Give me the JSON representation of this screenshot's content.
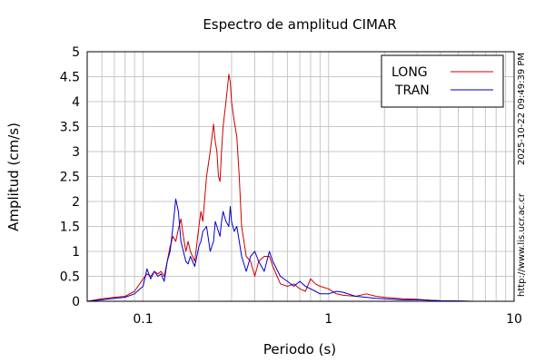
{
  "chart_data": {
    "type": "line",
    "title": "Espectro de amplitud CIMAR",
    "xlabel": "Periodo (s)",
    "ylabel": "Amplitud (cm/s)",
    "x_scale": "log",
    "xlim": [
      0.05,
      10
    ],
    "ylim": [
      0,
      5
    ],
    "grid": true,
    "legend_position": "top-right",
    "x_tick_labels": [
      "0.1",
      "1",
      "10"
    ],
    "x_tick_values": [
      0.1,
      1,
      10
    ],
    "y_tick_labels": [
      "0",
      "0.5",
      "1",
      "1.5",
      "2",
      "2.5",
      "3",
      "3.5",
      "4",
      "4.5",
      "5"
    ],
    "y_tick_values": [
      0,
      0.5,
      1,
      1.5,
      2,
      2.5,
      3,
      3.5,
      4,
      4.5,
      5
    ],
    "series": [
      {
        "name": "LONG",
        "color": "#cc0000",
        "x": [
          0.05,
          0.06,
          0.07,
          0.08,
          0.09,
          0.1,
          0.105,
          0.11,
          0.115,
          0.12,
          0.125,
          0.13,
          0.135,
          0.14,
          0.145,
          0.15,
          0.155,
          0.16,
          0.165,
          0.17,
          0.175,
          0.18,
          0.19,
          0.2,
          0.205,
          0.21,
          0.22,
          0.23,
          0.24,
          0.245,
          0.25,
          0.255,
          0.26,
          0.265,
          0.27,
          0.28,
          0.29,
          0.295,
          0.3,
          0.31,
          0.32,
          0.33,
          0.34,
          0.36,
          0.38,
          0.4,
          0.42,
          0.45,
          0.48,
          0.5,
          0.55,
          0.6,
          0.65,
          0.7,
          0.75,
          0.8,
          0.85,
          0.9,
          1.0,
          1.1,
          1.2,
          1.4,
          1.6,
          1.8,
          2.0,
          2.5,
          3.0,
          3.5,
          4.0,
          6.0,
          10.0
        ],
        "y": [
          0.0,
          0.05,
          0.08,
          0.1,
          0.2,
          0.45,
          0.55,
          0.5,
          0.6,
          0.55,
          0.6,
          0.5,
          0.8,
          1.1,
          1.3,
          1.2,
          1.45,
          1.65,
          1.3,
          1.0,
          1.2,
          1.0,
          0.8,
          1.5,
          1.8,
          1.6,
          2.5,
          3.0,
          3.55,
          3.2,
          3.0,
          2.5,
          2.4,
          3.0,
          3.5,
          4.0,
          4.55,
          4.4,
          4.0,
          3.6,
          3.3,
          2.5,
          1.5,
          0.9,
          0.8,
          0.5,
          0.8,
          0.9,
          0.9,
          0.7,
          0.35,
          0.3,
          0.35,
          0.25,
          0.2,
          0.45,
          0.35,
          0.3,
          0.25,
          0.15,
          0.12,
          0.1,
          0.15,
          0.1,
          0.08,
          0.05,
          0.04,
          0.02,
          0.01,
          0.0,
          0.0
        ]
      },
      {
        "name": "TRAN",
        "color": "#0000cc",
        "x": [
          0.05,
          0.06,
          0.07,
          0.08,
          0.09,
          0.1,
          0.105,
          0.11,
          0.115,
          0.12,
          0.125,
          0.13,
          0.135,
          0.14,
          0.145,
          0.15,
          0.155,
          0.16,
          0.165,
          0.17,
          0.175,
          0.18,
          0.19,
          0.2,
          0.205,
          0.21,
          0.22,
          0.23,
          0.24,
          0.245,
          0.25,
          0.255,
          0.26,
          0.265,
          0.27,
          0.28,
          0.29,
          0.295,
          0.3,
          0.31,
          0.32,
          0.33,
          0.34,
          0.36,
          0.38,
          0.4,
          0.42,
          0.45,
          0.48,
          0.5,
          0.55,
          0.6,
          0.65,
          0.7,
          0.75,
          0.8,
          0.85,
          0.9,
          1.0,
          1.1,
          1.2,
          1.4,
          1.6,
          1.8,
          2.0,
          2.5,
          3.0,
          3.5,
          4.0,
          6.0,
          10.0
        ],
        "y": [
          0.0,
          0.03,
          0.06,
          0.08,
          0.15,
          0.3,
          0.65,
          0.45,
          0.6,
          0.5,
          0.55,
          0.4,
          0.8,
          1.0,
          1.5,
          2.05,
          1.8,
          1.2,
          1.0,
          0.8,
          0.75,
          0.9,
          0.7,
          1.1,
          1.2,
          1.4,
          1.5,
          1.0,
          1.2,
          1.6,
          1.5,
          1.4,
          1.3,
          1.6,
          1.8,
          1.6,
          1.5,
          1.9,
          1.6,
          1.4,
          1.5,
          1.2,
          0.9,
          0.6,
          0.9,
          1.0,
          0.8,
          0.6,
          1.0,
          0.8,
          0.5,
          0.4,
          0.3,
          0.4,
          0.3,
          0.25,
          0.2,
          0.15,
          0.15,
          0.2,
          0.18,
          0.1,
          0.08,
          0.06,
          0.05,
          0.03,
          0.03,
          0.02,
          0.01,
          0.0,
          0.0
        ]
      }
    ]
  },
  "side_labels": {
    "timestamp": "2025-10-22 09:49:39 PM",
    "url": "http://www.lis.ucr.ac.cr"
  }
}
